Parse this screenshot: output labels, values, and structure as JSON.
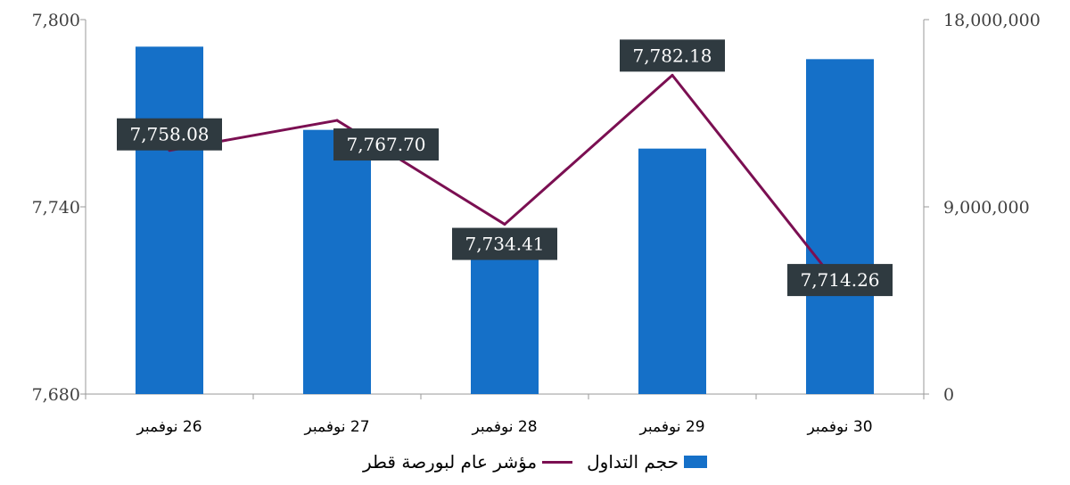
{
  "chart_data": {
    "type": "bar+line",
    "categories": [
      "26 نوفمبر",
      "27 نوفمبر",
      "28 نوفمبر",
      "29 نوفمبر",
      "30 نوفمبر"
    ],
    "series": [
      {
        "name": "حجم التداول",
        "type": "bar",
        "axis": "right",
        "color": "#1570C8",
        "values": [
          16700000,
          12700000,
          6700000,
          11800000,
          16100000
        ]
      },
      {
        "name": "مؤشر عام لبورصة قطر",
        "type": "line",
        "axis": "left",
        "color": "#7B0F52",
        "values": [
          7758.08,
          7767.7,
          7734.41,
          7782.18,
          7714.26
        ],
        "labels": [
          "7,758.08",
          "7,767.70",
          "7,734.41",
          "7,782.18",
          "7,714.26"
        ]
      }
    ],
    "y_left": {
      "min": 7680,
      "max": 7800,
      "ticks": [
        "7,680",
        "7,740",
        "7,800"
      ]
    },
    "y_right": {
      "min": 0,
      "max": 18000000,
      "ticks": [
        "0",
        "9,000,000",
        "18,000,000"
      ]
    },
    "legend_position": "bottom",
    "grid": false
  }
}
